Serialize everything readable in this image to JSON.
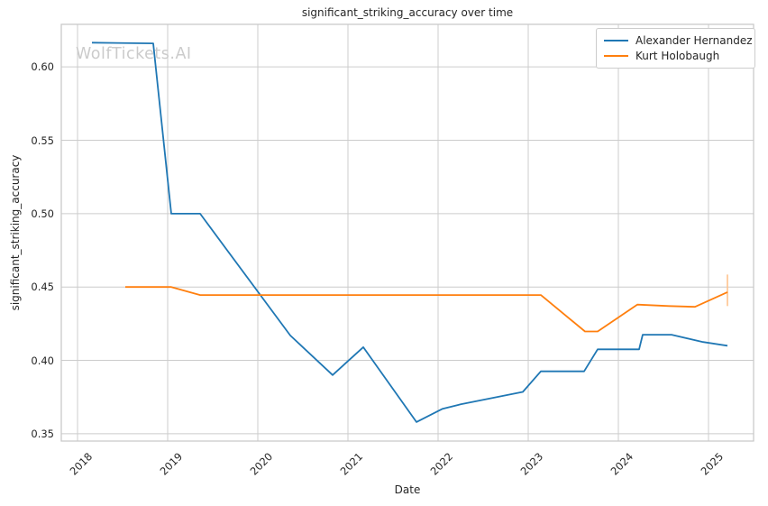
{
  "watermark": "WolfTickets.AI",
  "chart_data": {
    "type": "line",
    "title": "significant_striking_accuracy over time",
    "xlabel": "Date",
    "ylabel": "significant_striking_accuracy",
    "grid": true,
    "legend_position": "upper right",
    "xlim": [
      2017.82,
      2025.5
    ],
    "ylim": [
      0.345,
      0.629
    ],
    "x_ticks": [
      {
        "label": "2018",
        "value": 2018
      },
      {
        "label": "2019",
        "value": 2019
      },
      {
        "label": "2020",
        "value": 2020
      },
      {
        "label": "2021",
        "value": 2021
      },
      {
        "label": "2022",
        "value": 2022
      },
      {
        "label": "2023",
        "value": 2023
      },
      {
        "label": "2024",
        "value": 2024
      },
      {
        "label": "2025",
        "value": 2025
      }
    ],
    "y_ticks": [
      {
        "label": "0.60",
        "value": 0.6
      },
      {
        "label": "0.55",
        "value": 0.55
      },
      {
        "label": "0.50",
        "value": 0.5
      },
      {
        "label": "0.45",
        "value": 0.45
      },
      {
        "label": "0.40",
        "value": 0.4
      },
      {
        "label": "0.35",
        "value": 0.35
      }
    ],
    "series": [
      {
        "name": "Alexander Hernandez",
        "color": "#1f77b4",
        "points": [
          [
            2018.16,
            0.6165
          ],
          [
            2018.84,
            0.616
          ],
          [
            2019.04,
            0.5
          ],
          [
            2019.36,
            0.5
          ],
          [
            2020.36,
            0.417
          ],
          [
            2020.83,
            0.39
          ],
          [
            2021.17,
            0.409
          ],
          [
            2021.76,
            0.358
          ],
          [
            2022.05,
            0.367
          ],
          [
            2022.25,
            0.37
          ],
          [
            2022.94,
            0.3785
          ],
          [
            2023.14,
            0.3925
          ],
          [
            2023.62,
            0.3925
          ],
          [
            2023.77,
            0.4075
          ],
          [
            2024.23,
            0.4075
          ],
          [
            2024.27,
            0.4175
          ],
          [
            2024.59,
            0.4175
          ],
          [
            2024.94,
            0.4125
          ],
          [
            2025.21,
            0.41
          ]
        ]
      },
      {
        "name": "Kurt Holobaugh",
        "color": "#ff7f0e",
        "points": [
          [
            2018.53,
            0.45
          ],
          [
            2019.04,
            0.45
          ],
          [
            2019.36,
            0.4445
          ],
          [
            2023.14,
            0.4445
          ],
          [
            2023.63,
            0.4197
          ],
          [
            2023.77,
            0.4197
          ],
          [
            2024.21,
            0.438
          ],
          [
            2024.56,
            0.437
          ],
          [
            2024.85,
            0.4365
          ],
          [
            2025.21,
            0.4465
          ]
        ],
        "error_bar": {
          "x": 2025.21,
          "low": 0.437,
          "high": 0.4585,
          "color": "#ffc38e"
        }
      }
    ]
  }
}
